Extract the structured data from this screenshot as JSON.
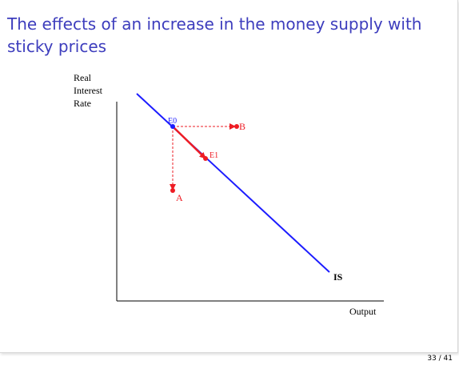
{
  "slide": {
    "title": "The effects of an increase in the money supply with sticky prices",
    "page_number": "33 / 41"
  },
  "diagram": {
    "y_axis_label": [
      "Real",
      "Interest",
      "Rate"
    ],
    "x_axis_label": "Output",
    "curve_label": "IS",
    "points": {
      "e0": "E0",
      "e1": "E1",
      "a": "A",
      "b": "B"
    },
    "colors": {
      "is_curve": "#1c1cff",
      "movement": "#ee1c24",
      "axis": "#000000",
      "title": "#3d3dbd"
    }
  }
}
